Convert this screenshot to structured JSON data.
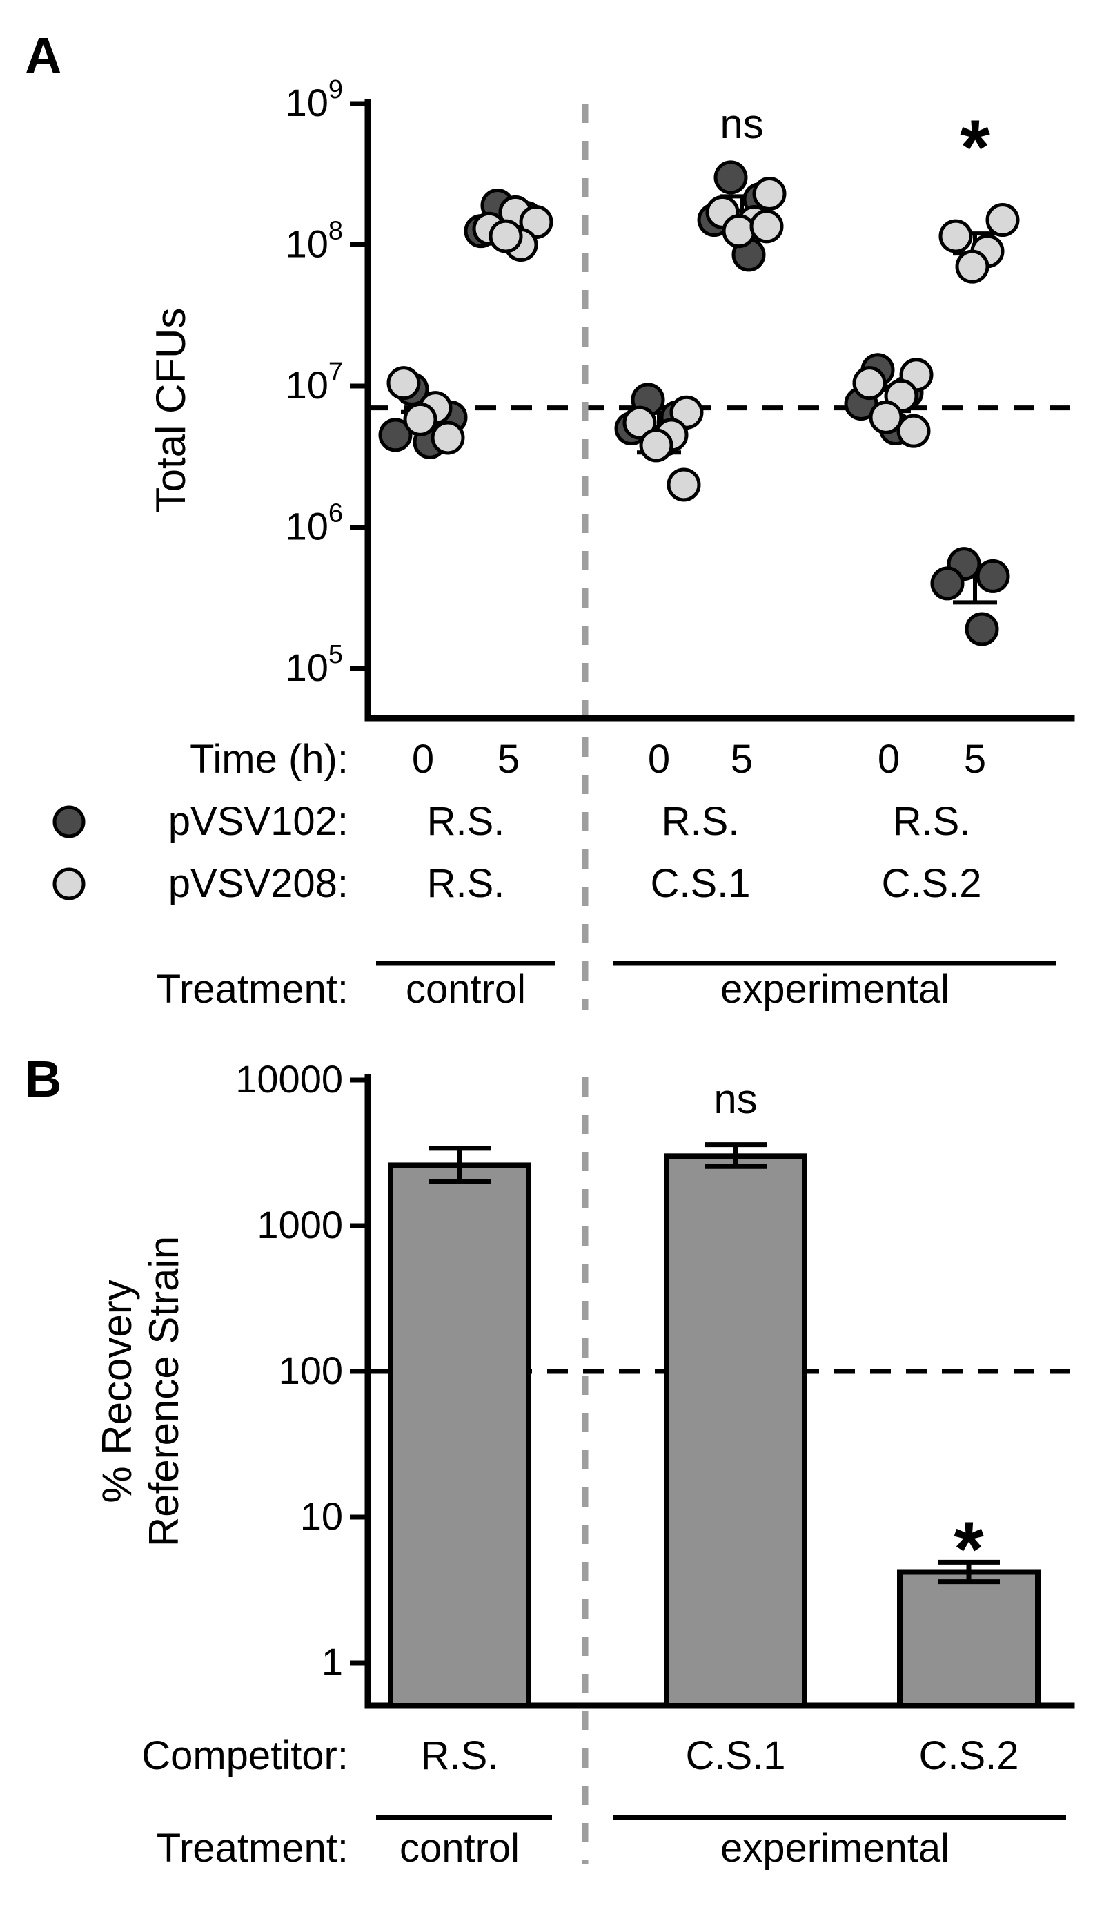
{
  "colors": {
    "dark_series": "#4b4b4b",
    "light_series": "#d8d8d8",
    "bar_fill": "#919191",
    "divider_gray": "#9e9e9e",
    "black": "#000000"
  },
  "chart_data": [
    {
      "id": "panel_a",
      "type": "scatter",
      "panel_label": "A",
      "ylabel": "Total CFUs",
      "y_scale": "log",
      "ylim": [
        100000.0,
        1000000000.0
      ],
      "ytick_exponents": [
        5,
        6,
        7,
        8,
        9
      ],
      "reference_line": 7000000.0,
      "series": [
        {
          "name": "pVSV102",
          "color_key": "dark_series"
        },
        {
          "name": "pVSV208",
          "color_key": "light_series"
        }
      ],
      "groups": [
        {
          "time": "0",
          "treatment": "control",
          "pVSV102": [
            9500000.0,
            5500000.0,
            4500000.0,
            4000000.0,
            6000000.0
          ],
          "pVSV208": [
            10500000.0,
            7000000.0,
            5800000.0,
            4300000.0
          ],
          "sig": ""
        },
        {
          "time": "5",
          "treatment": "control",
          "pVSV102": [
            190000000.0,
            155000000.0,
            125000000.0
          ],
          "pVSV208": [
            170000000.0,
            145000000.0,
            130000000.0,
            100000000.0,
            115000000.0
          ],
          "sig": ""
        },
        {
          "time": "0",
          "treatment": "experimental",
          "pVSV102": [
            8000000.0,
            6000000.0,
            5000000.0,
            4200000.0
          ],
          "pVSV208": [
            6500000.0,
            5500000.0,
            4500000.0,
            3800000.0,
            2000000.0
          ],
          "sig": ""
        },
        {
          "time": "5",
          "treatment": "experimental",
          "pVSV102": [
            300000000.0,
            210000000.0,
            150000000.0,
            85000000.0
          ],
          "pVSV208": [
            230000000.0,
            170000000.0,
            145000000.0,
            125000000.0,
            135000000.0
          ],
          "sig": "ns"
        },
        {
          "time": "0",
          "treatment": "experimental",
          "pVSV102": [
            13000000.0,
            9000000.0,
            7500000.0,
            5000000.0
          ],
          "pVSV208": [
            12000000.0,
            10500000.0,
            8500000.0,
            6000000.0,
            4800000.0
          ],
          "sig": ""
        },
        {
          "time": "5",
          "treatment": "experimental",
          "pVSV102": [
            550000.0,
            450000.0,
            400000.0,
            190000.0
          ],
          "pVSV208": [
            150000000.0,
            115000000.0,
            90000000.0,
            70000000.0
          ],
          "sig": "*"
        }
      ],
      "x_rows": {
        "time_label": "Time (h):",
        "row102_label": "pVSV102:",
        "row208_label": "pVSV208:",
        "treatment_label": "Treatment:",
        "columns": [
          {
            "treatment": "control",
            "pVSV102": "R.S.",
            "pVSV208": "R.S."
          },
          {
            "treatment": "experimental",
            "pVSV102": "R.S.",
            "pVSV208": "C.S.1"
          },
          {
            "treatment": "experimental",
            "pVSV102": "R.S.",
            "pVSV208": "C.S.2"
          }
        ],
        "treatments": [
          "control",
          "experimental"
        ]
      }
    },
    {
      "id": "panel_b",
      "type": "bar",
      "panel_label": "B",
      "ylabel_lines": [
        "% Recovery",
        "Reference Strain"
      ],
      "y_scale": "log",
      "ylim": [
        1,
        10000
      ],
      "ytick_labels": [
        "1",
        "10",
        "100",
        "1000",
        "10000"
      ],
      "reference_line": 100,
      "categories": [
        "R.S.",
        "C.S.1",
        "C.S.2"
      ],
      "values": [
        2600,
        3000,
        4.2
      ],
      "error_low": [
        2000,
        2550,
        3.6
      ],
      "error_high": [
        3400,
        3600,
        4.9
      ],
      "annotations": [
        "",
        "ns",
        "*"
      ],
      "competitor_label": "Competitor:",
      "treatment_label": "Treatment:",
      "treatments": [
        "control",
        "experimental"
      ]
    }
  ]
}
